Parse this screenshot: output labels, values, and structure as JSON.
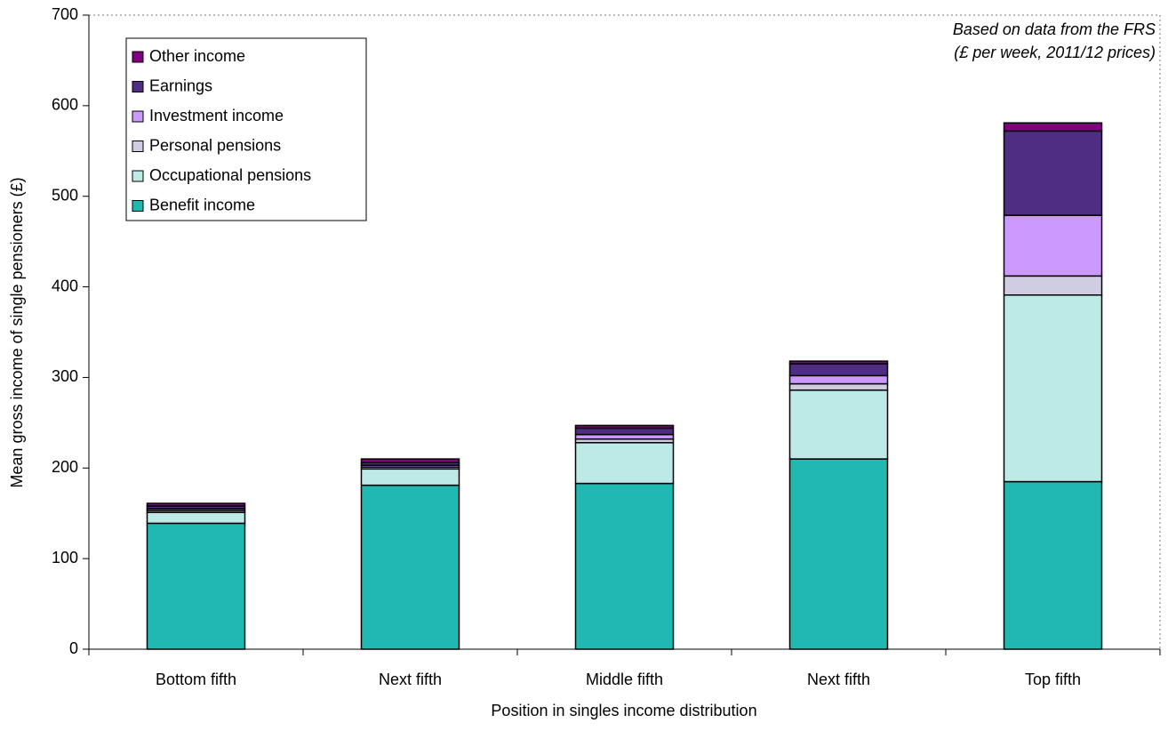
{
  "chart_data": {
    "type": "stacked_bar",
    "annotation": [
      "Based on data from the FRS",
      "(£ per week, 2011/12 prices)"
    ],
    "x_label": "Position in singles income distribution",
    "y_label": "Mean gross income of single pensioners (£)",
    "categories": [
      "Bottom fifth",
      "Next fifth",
      "Middle fifth",
      "Next fifth",
      "Top fifth"
    ],
    "series": [
      {
        "name": "Benefit income",
        "color": "#20b8b0",
        "values": [
          139,
          181,
          183,
          210,
          185
        ]
      },
      {
        "name": "Occupational pensions",
        "color": "#bde9e6",
        "values": [
          12,
          18,
          45,
          76,
          206
        ]
      },
      {
        "name": "Personal pensions",
        "color": "#d0cce2",
        "values": [
          2,
          2,
          4,
          7,
          21
        ]
      },
      {
        "name": "Investment income",
        "color": "#cc99ff",
        "values": [
          2,
          2,
          5,
          9,
          67
        ]
      },
      {
        "name": "Earnings",
        "color": "#4f2d82",
        "values": [
          3,
          3,
          7,
          13,
          93
        ]
      },
      {
        "name": "Other income",
        "color": "#800080",
        "values": [
          3,
          4,
          3,
          3,
          9
        ]
      }
    ],
    "ylim": [
      0,
      700
    ],
    "yticks": [
      0,
      100,
      200,
      300,
      400,
      500,
      600,
      700
    ],
    "legend": "top-left",
    "legend_order": "reversed"
  }
}
